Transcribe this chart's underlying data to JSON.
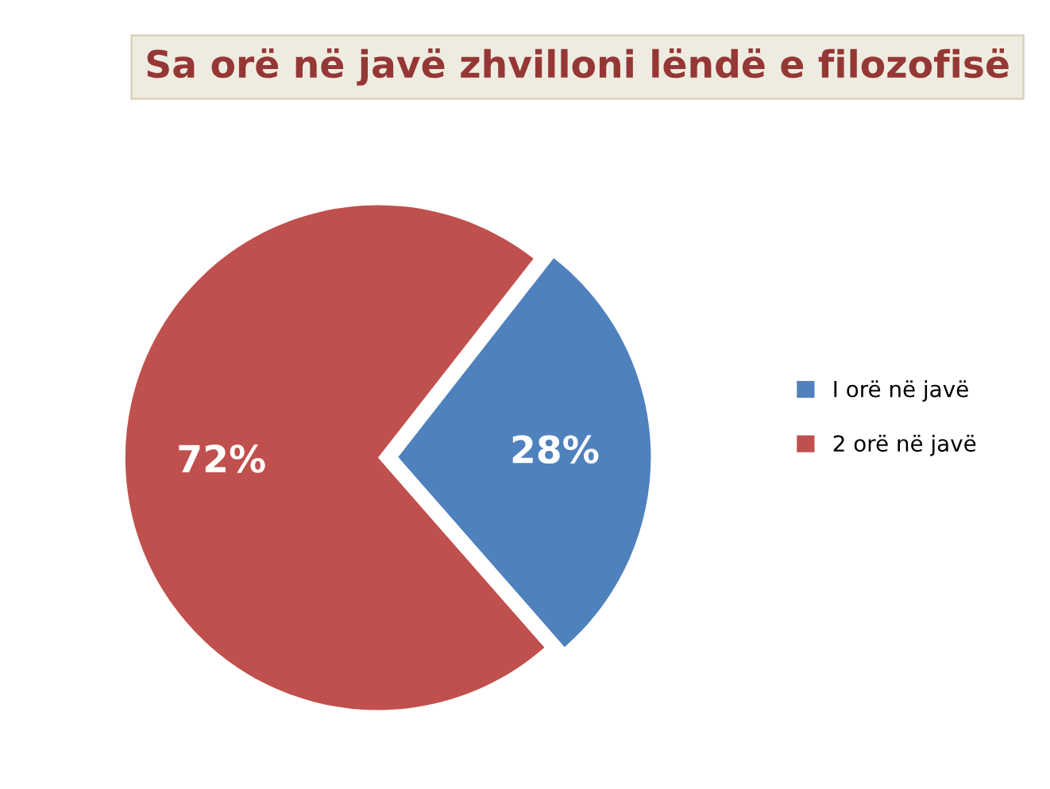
{
  "chart_data": {
    "type": "pie",
    "title": "Sa orë në javë zhvilloni lëndë e filozofisë",
    "categories": [
      "I orë në javë",
      "2 orë në javë"
    ],
    "values": [
      28,
      72
    ],
    "value_labels": [
      "28%",
      "72%"
    ],
    "colors": [
      "#4f81bd",
      "#c0504d"
    ],
    "legend": "right"
  }
}
